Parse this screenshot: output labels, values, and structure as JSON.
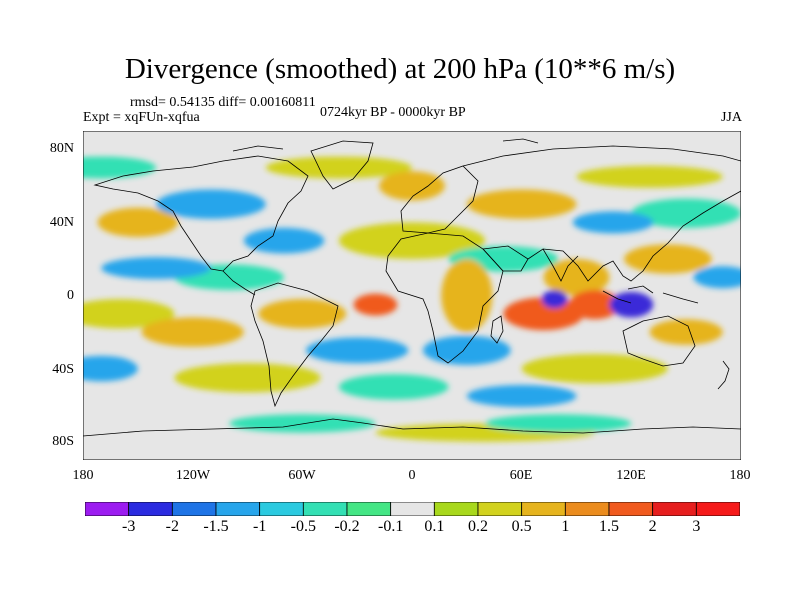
{
  "title": "Divergence (smoothed) at 200 hPa (10**6 m/s)",
  "stats": "rmsd= 0.54135 diff= 0.00160811",
  "experiment": "Expt = xqFUn-xqfua",
  "period": "0724kyr BP - 0000kyr BP",
  "season": "JJA",
  "lat_labels": [
    "80N",
    "40N",
    "0",
    "40S",
    "80S"
  ],
  "lon_labels": [
    "180",
    "120W",
    "60W",
    "0",
    "60E",
    "120E",
    "180"
  ],
  "colorbar": {
    "labels": [
      "-3",
      "-2",
      "-1.5",
      "-1",
      "-0.5",
      "-0.2",
      "-0.1",
      "0.1",
      "0.2",
      "0.5",
      "1",
      "1.5",
      "2",
      "3"
    ],
    "colors": [
      "#9c1cf0",
      "#2b2be0",
      "#1f74e6",
      "#27a5eb",
      "#2bcae0",
      "#33e0b4",
      "#44e685",
      "#e6e6e6",
      "#a8d81c",
      "#d2d21e",
      "#e6b41e",
      "#eb8c1e",
      "#f05a1e",
      "#e61e1e",
      "#f51a1a"
    ]
  },
  "map_regions": {
    "pos_strong": [
      [
        72,
        -10,
        22,
        9
      ],
      [
        100,
        -5,
        14,
        8
      ],
      [
        -20,
        -5,
        12,
        6
      ]
    ],
    "neg_strong": [
      [
        78,
        -2,
        7,
        5
      ],
      [
        120,
        -5,
        12,
        7
      ]
    ],
    "pos_mid": [
      [
        30,
        0,
        14,
        20
      ],
      [
        90,
        10,
        18,
        10
      ],
      [
        -60,
        -10,
        24,
        8
      ],
      [
        60,
        50,
        30,
        8
      ],
      [
        140,
        20,
        24,
        8
      ],
      [
        -120,
        -20,
        28,
        8
      ],
      [
        150,
        -20,
        20,
        7
      ],
      [
        -150,
        40,
        22,
        8
      ],
      [
        0,
        60,
        18,
        8
      ]
    ],
    "neg_mid": [
      [
        -110,
        50,
        30,
        8
      ],
      [
        -140,
        15,
        30,
        6
      ],
      [
        30,
        -30,
        24,
        8
      ],
      [
        -70,
        30,
        22,
        7
      ],
      [
        110,
        40,
        22,
        6
      ],
      [
        -30,
        -30,
        28,
        7
      ],
      [
        -170,
        -40,
        20,
        7
      ],
      [
        60,
        -55,
        30,
        6
      ],
      [
        170,
        10,
        16,
        6
      ]
    ],
    "pos_weak": [
      [
        0,
        30,
        40,
        10
      ],
      [
        -90,
        -45,
        40,
        8
      ],
      [
        100,
        -40,
        40,
        8
      ],
      [
        -40,
        70,
        40,
        6
      ],
      [
        130,
        65,
        40,
        6
      ],
      [
        -160,
        -10,
        30,
        8
      ],
      [
        40,
        -75,
        60,
        5
      ]
    ],
    "neg_weak": [
      [
        -10,
        -50,
        30,
        7
      ],
      [
        150,
        45,
        30,
        8
      ],
      [
        -100,
        10,
        30,
        7
      ],
      [
        50,
        20,
        30,
        7
      ],
      [
        -170,
        70,
        30,
        6
      ],
      [
        80,
        -70,
        40,
        5
      ],
      [
        -60,
        -70,
        40,
        5
      ]
    ]
  }
}
